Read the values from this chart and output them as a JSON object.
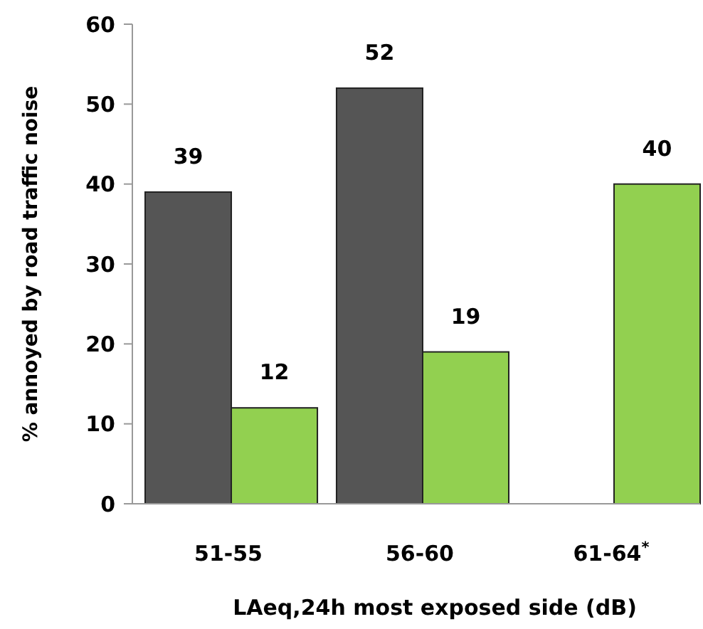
{
  "chart_data": {
    "type": "bar",
    "xlabel": "LAeq,24h most exposed side (dB)",
    "ylabel": "% annoyed by road traffic noise",
    "categories": [
      "51-55",
      "56-60",
      "61-64$^{*}$"
    ],
    "series": [
      {
        "color": "#555555",
        "values": [
          39,
          52,
          null
        ]
      },
      {
        "color": "#92d050",
        "values": [
          12,
          19,
          40
        ]
      }
    ],
    "ylim": [
      0,
      60
    ],
    "yticks": [
      0,
      10,
      20,
      30,
      40,
      50,
      60
    ],
    "data_labels": true,
    "grid": false
  }
}
